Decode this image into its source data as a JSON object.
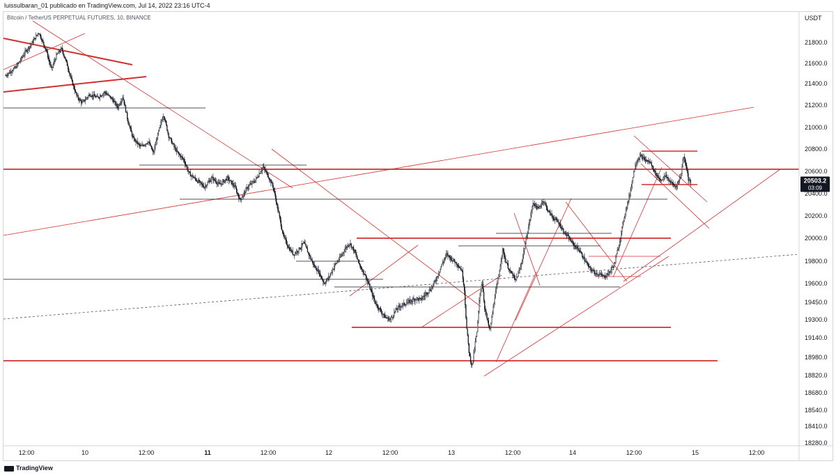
{
  "header": {
    "attribution": "luissulbaran_01 publicado en TradingView.com, Jul 14, 2022 23:16 UTC-4"
  },
  "footer": {
    "brand": "TradingView"
  },
  "chart_data": {
    "type": "candlestick",
    "title": "Bitcoin / TetherUS PERPETUAL FUTURES, 10, BINANCE",
    "currency_label": "USDT",
    "price_axis": {
      "ticks": [
        21800.0,
        21600.0,
        21400.0,
        21200.0,
        21000.0,
        20800.0,
        20600.0,
        20400.0,
        20200.0,
        20000.0,
        19800.0,
        19600.0,
        19450.0,
        19300.0,
        19140.0,
        18980.0,
        18820.0,
        18680.0,
        18540.0,
        18410.0,
        18280.0
      ],
      "ylim": [
        18250,
        21950
      ],
      "scale": "log"
    },
    "time_axis": {
      "ticks": [
        {
          "label": "12:00",
          "bold": false
        },
        {
          "label": "10",
          "bold": false
        },
        {
          "label": "12:00",
          "bold": false
        },
        {
          "label": "11",
          "bold": true
        },
        {
          "label": "12:00",
          "bold": false
        },
        {
          "label": "12",
          "bold": false
        },
        {
          "label": "12:00",
          "bold": false
        },
        {
          "label": "13",
          "bold": false
        },
        {
          "label": "12:00",
          "bold": false
        },
        {
          "label": "14",
          "bold": false
        },
        {
          "label": "12:00",
          "bold": false
        },
        {
          "label": "15",
          "bold": false
        },
        {
          "label": "12:00",
          "bold": false
        }
      ]
    },
    "last_price": {
      "value": "20503.2",
      "countdown": "03:09",
      "color": "#131722"
    },
    "path_price": [
      [
        0,
        21480
      ],
      [
        4,
        21560
      ],
      [
        8,
        21720
      ],
      [
        10,
        21780
      ],
      [
        12,
        21860
      ],
      [
        13,
        21900
      ],
      [
        16,
        21720
      ],
      [
        18,
        21540
      ],
      [
        20,
        21680
      ],
      [
        22,
        21740
      ],
      [
        24,
        21600
      ],
      [
        26,
        21420
      ],
      [
        28,
        21280
      ],
      [
        30,
        21220
      ],
      [
        33,
        21300
      ],
      [
        36,
        21270
      ],
      [
        39,
        21320
      ],
      [
        42,
        21250
      ],
      [
        44,
        21180
      ],
      [
        46,
        21280
      ],
      [
        48,
        21060
      ],
      [
        50,
        20900
      ],
      [
        53,
        20820
      ],
      [
        56,
        20870
      ],
      [
        58,
        20760
      ],
      [
        60,
        20960
      ],
      [
        62,
        21120
      ],
      [
        64,
        20920
      ],
      [
        67,
        20780
      ],
      [
        70,
        20700
      ],
      [
        72,
        20580
      ],
      [
        75,
        20520
      ],
      [
        78,
        20460
      ],
      [
        81,
        20540
      ],
      [
        84,
        20480
      ],
      [
        87,
        20540
      ],
      [
        90,
        20460
      ],
      [
        92,
        20340
      ],
      [
        95,
        20460
      ],
      [
        98,
        20520
      ],
      [
        101,
        20640
      ],
      [
        103,
        20560
      ],
      [
        105,
        20460
      ],
      [
        107,
        20240
      ],
      [
        109,
        20020
      ],
      [
        111,
        19920
      ],
      [
        113,
        19860
      ],
      [
        115,
        19900
      ],
      [
        117,
        19960
      ],
      [
        119,
        19860
      ],
      [
        121,
        19760
      ],
      [
        123,
        19700
      ],
      [
        125,
        19600
      ],
      [
        127,
        19660
      ],
      [
        129,
        19760
      ],
      [
        131,
        19820
      ],
      [
        133,
        19900
      ],
      [
        135,
        19960
      ],
      [
        137,
        19880
      ],
      [
        139,
        19760
      ],
      [
        141,
        19680
      ],
      [
        143,
        19560
      ],
      [
        145,
        19450
      ],
      [
        147,
        19380
      ],
      [
        149,
        19320
      ],
      [
        151,
        19300
      ],
      [
        153,
        19380
      ],
      [
        155,
        19420
      ],
      [
        157,
        19440
      ],
      [
        159,
        19460
      ],
      [
        161,
        19480
      ],
      [
        163,
        19470
      ],
      [
        165,
        19520
      ],
      [
        167,
        19560
      ],
      [
        169,
        19640
      ],
      [
        171,
        19760
      ],
      [
        173,
        19860
      ],
      [
        175,
        19820
      ],
      [
        177,
        19780
      ],
      [
        179,
        19720
      ],
      [
        180,
        19560
      ],
      [
        181,
        19200
      ],
      [
        182,
        19000
      ],
      [
        183,
        18900
      ],
      [
        184,
        19050
      ],
      [
        185,
        19200
      ],
      [
        186,
        19500
      ],
      [
        187,
        19620
      ],
      [
        188,
        19400
      ],
      [
        189,
        19300
      ],
      [
        190,
        19200
      ],
      [
        191,
        19350
      ],
      [
        192,
        19500
      ],
      [
        193,
        19600
      ],
      [
        194,
        19750
      ],
      [
        195,
        19900
      ],
      [
        196,
        19820
      ],
      [
        197,
        19760
      ],
      [
        198,
        19700
      ],
      [
        199,
        19680
      ],
      [
        200,
        19620
      ],
      [
        202,
        19740
      ],
      [
        204,
        19960
      ],
      [
        206,
        20200
      ],
      [
        207,
        20320
      ],
      [
        209,
        20260
      ],
      [
        211,
        20340
      ],
      [
        213,
        20240
      ],
      [
        215,
        20180
      ],
      [
        217,
        20140
      ],
      [
        219,
        20060
      ],
      [
        221,
        20000
      ],
      [
        223,
        19940
      ],
      [
        225,
        19900
      ],
      [
        227,
        19820
      ],
      [
        229,
        19740
      ],
      [
        231,
        19700
      ],
      [
        233,
        19680
      ],
      [
        235,
        19660
      ],
      [
        237,
        19700
      ],
      [
        239,
        19780
      ],
      [
        241,
        19980
      ],
      [
        243,
        20220
      ],
      [
        245,
        20400
      ],
      [
        247,
        20660
      ],
      [
        249,
        20740
      ],
      [
        251,
        20700
      ],
      [
        253,
        20680
      ],
      [
        255,
        20580
      ],
      [
        257,
        20520
      ],
      [
        259,
        20560
      ],
      [
        261,
        20500
      ],
      [
        263,
        20460
      ],
      [
        265,
        20560
      ],
      [
        266,
        20740
      ],
      [
        267,
        20660
      ],
      [
        268,
        20520
      ],
      [
        269,
        20500
      ]
    ],
    "indicators": {
      "grid": false,
      "legend": "none"
    }
  }
}
